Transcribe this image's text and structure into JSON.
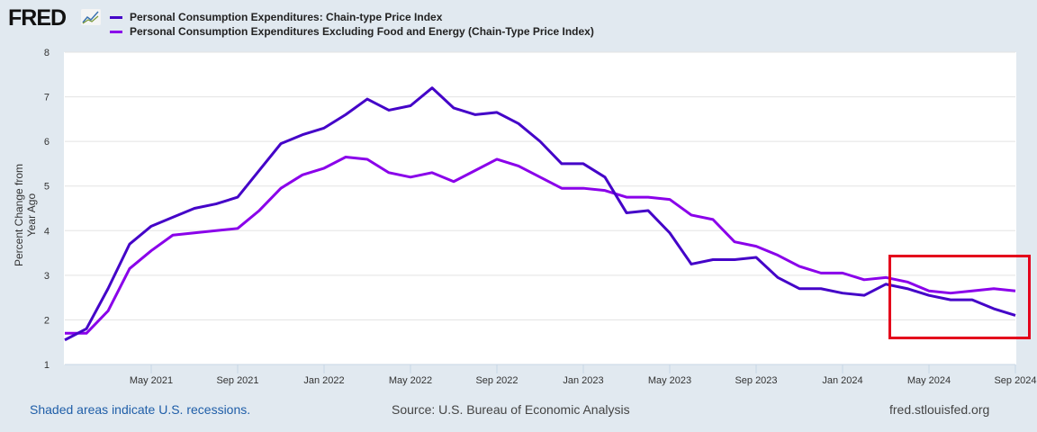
{
  "brand": {
    "logo": "FRED"
  },
  "chart_data": {
    "type": "line",
    "title": "",
    "ylabel": "Percent Change from Year Ago",
    "xlabel": "",
    "ylim": [
      1,
      8
    ],
    "yticks": [
      "1",
      "2",
      "3",
      "4",
      "5",
      "6",
      "7",
      "8"
    ],
    "xticks": [
      {
        "label": "May 2021",
        "index": 4
      },
      {
        "label": "Sep 2021",
        "index": 8
      },
      {
        "label": "Jan 2022",
        "index": 12
      },
      {
        "label": "May 2022",
        "index": 16
      },
      {
        "label": "Sep 2022",
        "index": 20
      },
      {
        "label": "Jan 2023",
        "index": 24
      },
      {
        "label": "May 2023",
        "index": 28
      },
      {
        "label": "Sep 2023",
        "index": 32
      },
      {
        "label": "Jan 2024",
        "index": 36
      },
      {
        "label": "May 2024",
        "index": 40
      },
      {
        "label": "Sep 2024",
        "index": 44
      }
    ],
    "x_range": [
      "Jan 2021",
      "Sep 2024"
    ],
    "frequency": "monthly",
    "grid": true,
    "legend": "top-left",
    "series": [
      {
        "name": "Personal Consumption Expenditures: Chain-type Price Index",
        "color": "#4403c8",
        "values": [
          1.55,
          1.8,
          2.7,
          3.7,
          4.1,
          4.3,
          4.5,
          4.6,
          4.75,
          5.35,
          5.95,
          6.15,
          6.3,
          6.6,
          6.95,
          6.7,
          6.8,
          7.2,
          6.75,
          6.6,
          6.65,
          6.4,
          6.0,
          5.5,
          5.5,
          5.2,
          4.4,
          4.45,
          3.95,
          3.25,
          3.35,
          3.35,
          3.4,
          2.95,
          2.7,
          2.7,
          2.6,
          2.55,
          2.8,
          2.7,
          2.55,
          2.45,
          2.45,
          2.25,
          2.1
        ]
      },
      {
        "name": "Personal Consumption Expenditures Excluding Food and Energy (Chain-Type Price Index)",
        "color": "#8a00ea",
        "values": [
          1.7,
          1.7,
          2.2,
          3.15,
          3.55,
          3.9,
          3.95,
          4.0,
          4.05,
          4.45,
          4.95,
          5.25,
          5.4,
          5.65,
          5.6,
          5.3,
          5.2,
          5.3,
          5.1,
          5.35,
          5.6,
          5.45,
          5.2,
          4.95,
          4.95,
          4.9,
          4.75,
          4.75,
          4.7,
          4.35,
          4.25,
          3.75,
          3.65,
          3.45,
          3.2,
          3.05,
          3.05,
          2.9,
          2.95,
          2.85,
          2.65,
          2.6,
          2.65,
          2.7,
          2.65
        ]
      }
    ]
  },
  "footer": {
    "recessions": "Shaded areas indicate U.S. recessions.",
    "source": "Source: U.S. Bureau of Economic Analysis",
    "site": "fred.stlouisfed.org"
  }
}
